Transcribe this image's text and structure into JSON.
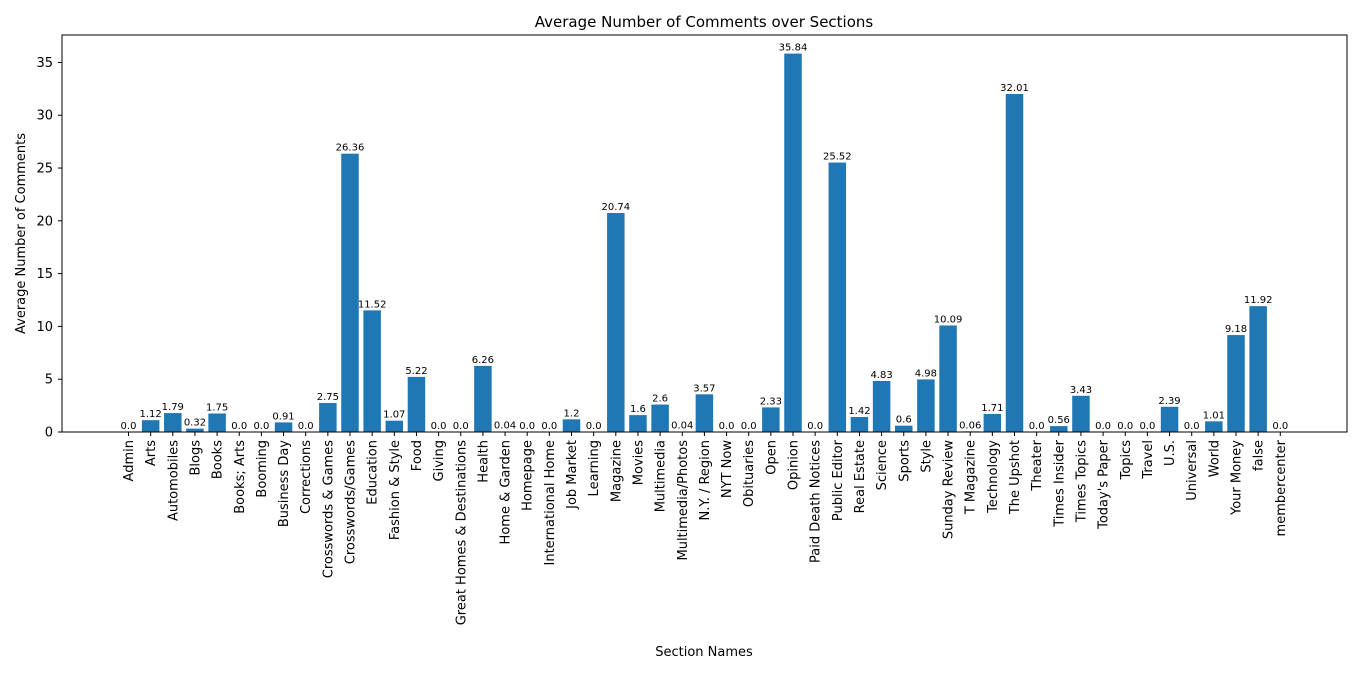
{
  "chart_data": {
    "type": "bar",
    "title": "Average Number of Comments over Sections",
    "xlabel": "Section Names",
    "ylabel": "Average Number of Comments",
    "ylim": [
      0,
      37.6
    ],
    "yticks": [
      0,
      5,
      10,
      15,
      20,
      25,
      30,
      35
    ],
    "grid": false,
    "bar_color": "#1f77b4",
    "categories": [
      "Admin",
      "Arts",
      "Automobiles",
      "Blogs",
      "Books",
      "Books; Arts",
      "Booming",
      "Business Day",
      "Corrections",
      "Crosswords & Games",
      "Crosswords/Games",
      "Education",
      "Fashion & Style",
      "Food",
      "Giving",
      "Great Homes & Destinations",
      "Health",
      "Home & Garden",
      "Homepage",
      "International Home",
      "Job Market",
      "Learning",
      "Magazine",
      "Movies",
      "Multimedia",
      "Multimedia/Photos",
      "N.Y. / Region",
      "NYT Now",
      "Obituaries",
      "Open",
      "Opinion",
      "Paid Death Notices",
      "Public Editor",
      "Real Estate",
      "Science",
      "Sports",
      "Style",
      "Sunday Review",
      "T Magazine",
      "Technology",
      "The Upshot",
      "Theater",
      "Times Insider",
      "Times Topics",
      "Today's Paper",
      "Topics",
      "Travel",
      "U.S.",
      "Universal",
      "World",
      "Your Money",
      "false",
      "membercenter"
    ],
    "values": [
      0.0,
      1.12,
      1.79,
      0.32,
      1.75,
      0.0,
      0.0,
      0.91,
      0.0,
      2.75,
      26.36,
      11.52,
      1.07,
      5.22,
      0.0,
      0.0,
      6.26,
      0.04,
      0.0,
      0.0,
      1.2,
      0.0,
      20.74,
      1.6,
      2.6,
      0.04,
      3.57,
      0.0,
      0.0,
      2.33,
      35.84,
      0.0,
      25.52,
      1.42,
      4.83,
      0.6,
      4.98,
      10.09,
      0.06,
      1.71,
      32.01,
      0.0,
      0.56,
      3.43,
      0.0,
      0.0,
      0.0,
      2.39,
      0.0,
      1.01,
      9.18,
      11.92,
      0.0
    ],
    "value_labels": [
      "0.0",
      "1.12",
      "1.79",
      "0.32",
      "1.75",
      "0.0",
      "0.0",
      "0.91",
      "0.0",
      "2.75",
      "26.36",
      "11.52",
      "1.07",
      "5.22",
      "0.0",
      "0.0",
      "6.26",
      "0.04",
      "0.0",
      "0.0",
      "1.2",
      "0.0",
      "20.74",
      "1.6",
      "2.6",
      "0.04",
      "3.57",
      "0.0",
      "0.0",
      "2.33",
      "35.84",
      "0.0",
      "25.52",
      "1.42",
      "4.83",
      "0.6",
      "4.98",
      "10.09",
      "0.06",
      "1.71",
      "32.01",
      "0.0",
      "0.56",
      "3.43",
      "0.0",
      "0.0",
      "0.0",
      "2.39",
      "0.0",
      "1.01",
      "9.18",
      "11.92",
      "0.0"
    ]
  }
}
